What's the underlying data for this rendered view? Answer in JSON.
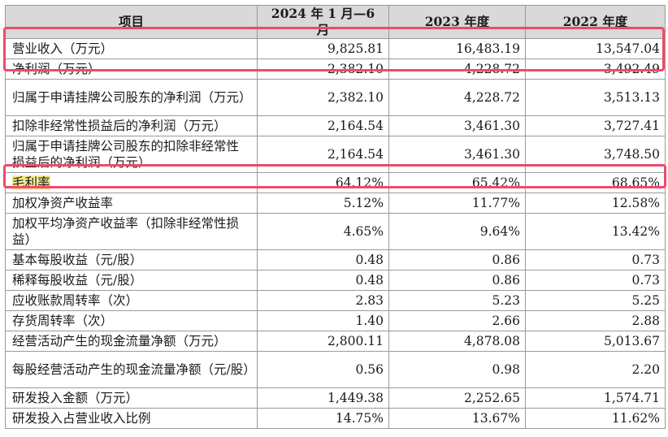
{
  "table": {
    "headers": [
      "项目",
      "2024 年 1 月—6 月",
      "2023 年度",
      "2022 年度"
    ],
    "rows": [
      {
        "label": "营业收入（万元）",
        "v1": "9,825.81",
        "v2": "16,483.19",
        "v3": "13,547.04"
      },
      {
        "label": "净利润（万元）",
        "v1": "2,382.10",
        "v2": "4,228.72",
        "v3": "3,492.49"
      },
      {
        "label": "归属于申请挂牌公司股东的净利润（万元）",
        "v1": "2,382.10",
        "v2": "4,228.72",
        "v3": "3,513.13"
      },
      {
        "label": "扣除非经常性损益后的净利润（万元）",
        "v1": "2,164.54",
        "v2": "3,461.30",
        "v3": "3,727.41"
      },
      {
        "label": "归属于申请挂牌公司股东的扣除非经常性损益后的净利润（万元）",
        "v1": "2,164.54",
        "v2": "3,461.30",
        "v3": "3,748.50"
      },
      {
        "label": "毛利率",
        "v1": "64.12%",
        "v2": "65.42%",
        "v3": "68.65%"
      },
      {
        "label": "加权净资产收益率",
        "v1": "5.12%",
        "v2": "11.77%",
        "v3": "12.58%"
      },
      {
        "label": "加权平均净资产收益率（扣除非经常性损益）",
        "v1": "4.65%",
        "v2": "9.64%",
        "v3": "13.42%"
      },
      {
        "label": "基本每股收益（元/股）",
        "v1": "0.48",
        "v2": "0.86",
        "v3": "0.73"
      },
      {
        "label": "稀释每股收益（元/股）",
        "v1": "0.48",
        "v2": "0.86",
        "v3": "0.73"
      },
      {
        "label": "应收账款周转率（次）",
        "v1": "2.83",
        "v2": "5.23",
        "v3": "5.25"
      },
      {
        "label": "存货周转率（次）",
        "v1": "1.40",
        "v2": "2.66",
        "v3": "2.88"
      },
      {
        "label": "经营活动产生的现金流量净额（万元）",
        "v1": "2,800.11",
        "v2": "4,878.08",
        "v3": "5,013.67"
      },
      {
        "label": "每股经营活动产生的现金流量净额（元/股）",
        "v1": "0.56",
        "v2": "0.98",
        "v3": "2.20"
      },
      {
        "label": "研发投入金额（万元）",
        "v1": "1,449.38",
        "v2": "2,252.65",
        "v3": "1,574.71"
      },
      {
        "label": "研发投入占营业收入比例",
        "v1": "14.75%",
        "v2": "13.67%",
        "v3": "11.62%"
      }
    ]
  },
  "colors": {
    "highlight_box": "#f04a6a",
    "text_highlight": "#f3ea8d",
    "header_bg": "#d9d9d9"
  }
}
